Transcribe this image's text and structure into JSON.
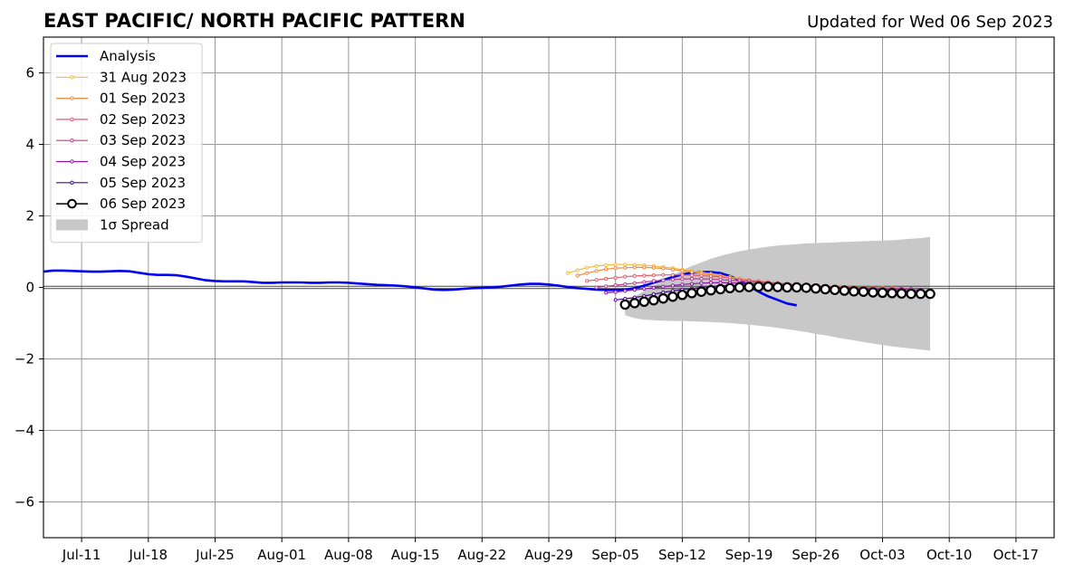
{
  "header": {
    "title": "EAST PACIFIC/ NORTH PACIFIC PATTERN",
    "updated": "Updated for Wed 06 Sep 2023"
  },
  "chart_data": {
    "type": "line",
    "title": "EAST PACIFIC/ NORTH PACIFIC PATTERN",
    "xlabel": "",
    "ylabel": "",
    "xlim": [
      "2023-07-07",
      "2023-10-21"
    ],
    "ylim": [
      -7,
      7
    ],
    "grid": true,
    "legend_position": "top-left",
    "x_ticks": [
      {
        "date": "2023-07-11",
        "label": "Jul-11"
      },
      {
        "date": "2023-07-18",
        "label": "Jul-18"
      },
      {
        "date": "2023-07-25",
        "label": "Jul-25"
      },
      {
        "date": "2023-08-01",
        "label": "Aug-01"
      },
      {
        "date": "2023-08-08",
        "label": "Aug-08"
      },
      {
        "date": "2023-08-15",
        "label": "Aug-15"
      },
      {
        "date": "2023-08-22",
        "label": "Aug-22"
      },
      {
        "date": "2023-08-29",
        "label": "Aug-29"
      },
      {
        "date": "2023-09-05",
        "label": "Sep-05"
      },
      {
        "date": "2023-09-12",
        "label": "Sep-12"
      },
      {
        "date": "2023-09-19",
        "label": "Sep-19"
      },
      {
        "date": "2023-09-26",
        "label": "Sep-26"
      },
      {
        "date": "2023-10-03",
        "label": "Oct-03"
      },
      {
        "date": "2023-10-10",
        "label": "Oct-10"
      },
      {
        "date": "2023-10-17",
        "label": "Oct-17"
      }
    ],
    "y_ticks": [
      {
        "value": -6,
        "label": "−6"
      },
      {
        "value": -4,
        "label": "−4"
      },
      {
        "value": -2,
        "label": "−2"
      },
      {
        "value": 0,
        "label": "0"
      },
      {
        "value": 2,
        "label": "2"
      },
      {
        "value": 4,
        "label": "4"
      },
      {
        "value": 6,
        "label": "6"
      }
    ],
    "analysis": {
      "name": "Analysis",
      "color": "#0000ee",
      "start_date": "2023-07-07",
      "values": [
        0.44,
        0.47,
        0.47,
        0.46,
        0.45,
        0.44,
        0.44,
        0.45,
        0.46,
        0.45,
        0.41,
        0.37,
        0.35,
        0.35,
        0.34,
        0.3,
        0.25,
        0.2,
        0.18,
        0.17,
        0.17,
        0.17,
        0.15,
        0.13,
        0.13,
        0.14,
        0.14,
        0.14,
        0.13,
        0.13,
        0.14,
        0.14,
        0.13,
        0.11,
        0.09,
        0.07,
        0.06,
        0.05,
        0.03,
        0.0,
        -0.03,
        -0.06,
        -0.07,
        -0.06,
        -0.04,
        -0.02,
        -0.01,
        0.0,
        0.02,
        0.05,
        0.08,
        0.1,
        0.1,
        0.08,
        0.05,
        0.01,
        -0.02,
        -0.04,
        -0.06,
        -0.07,
        -0.07,
        -0.06,
        -0.02,
        0.05,
        0.13,
        0.21,
        0.29,
        0.36,
        0.41,
        0.43,
        0.43,
        0.4,
        0.32,
        0.2,
        0.04,
        -0.12,
        -0.25,
        -0.35,
        -0.45,
        -0.5
      ]
    },
    "forecasts": [
      {
        "name": "31 Aug 2023",
        "color": "#f5b940",
        "start_date": "2023-08-31",
        "values": [
          0.4,
          0.48,
          0.55,
          0.6,
          0.62,
          0.64,
          0.64,
          0.63,
          0.62,
          0.6,
          0.57,
          0.54,
          0.5,
          0.46,
          0.42,
          0.38,
          0.33,
          0.29,
          0.25,
          0.21,
          0.18,
          0.15,
          0.12,
          0.1,
          0.08,
          0.06,
          0.05,
          0.04,
          0.03,
          0.02,
          0.01,
          0.0,
          0.0,
          0.0
        ]
      },
      {
        "name": "01 Sep 2023",
        "color": "#ef8a3c",
        "start_date": "2023-09-01",
        "values": [
          0.33,
          0.4,
          0.46,
          0.51,
          0.54,
          0.55,
          0.56,
          0.56,
          0.55,
          0.53,
          0.5,
          0.47,
          0.43,
          0.39,
          0.35,
          0.31,
          0.27,
          0.23,
          0.2,
          0.17,
          0.14,
          0.11,
          0.09,
          0.07,
          0.05,
          0.04,
          0.03,
          0.02,
          0.01,
          0.0,
          0.0,
          -0.01,
          -0.01,
          -0.01
        ]
      },
      {
        "name": "02 Sep 2023",
        "color": "#e05c6c",
        "start_date": "2023-09-02",
        "values": [
          0.18,
          0.21,
          0.24,
          0.27,
          0.3,
          0.32,
          0.33,
          0.34,
          0.35,
          0.35,
          0.35,
          0.34,
          0.33,
          0.31,
          0.29,
          0.26,
          0.23,
          0.2,
          0.17,
          0.15,
          0.12,
          0.1,
          0.08,
          0.06,
          0.05,
          0.03,
          0.02,
          0.01,
          0.0,
          -0.01,
          -0.01,
          -0.02,
          -0.02,
          -0.02
        ]
      },
      {
        "name": "03 Sep 2023",
        "color": "#b8408e",
        "start_date": "2023-09-03",
        "values": [
          0.0,
          0.03,
          0.06,
          0.09,
          0.12,
          0.15,
          0.18,
          0.2,
          0.22,
          0.23,
          0.24,
          0.24,
          0.23,
          0.22,
          0.2,
          0.18,
          0.16,
          0.14,
          0.12,
          0.1,
          0.08,
          0.06,
          0.05,
          0.03,
          0.02,
          0.01,
          0.0,
          -0.01,
          -0.02,
          -0.02,
          -0.03,
          -0.03,
          -0.03,
          -0.04
        ]
      },
      {
        "name": "04 Sep 2023",
        "color": "#8a1aa3",
        "start_date": "2023-09-04",
        "values": [
          -0.15,
          -0.13,
          -0.1,
          -0.07,
          -0.04,
          -0.01,
          0.02,
          0.05,
          0.08,
          0.1,
          0.12,
          0.13,
          0.13,
          0.13,
          0.12,
          0.11,
          0.1,
          0.08,
          0.07,
          0.05,
          0.04,
          0.02,
          0.01,
          0.0,
          -0.01,
          -0.02,
          -0.03,
          -0.04,
          -0.05,
          -0.05,
          -0.06,
          -0.06,
          -0.07,
          -0.07
        ]
      },
      {
        "name": "05 Sep 2023",
        "color": "#4a0a8c",
        "start_date": "2023-09-05",
        "values": [
          -0.35,
          -0.32,
          -0.28,
          -0.24,
          -0.19,
          -0.14,
          -0.1,
          -0.06,
          -0.03,
          0.0,
          0.02,
          0.04,
          0.05,
          0.05,
          0.05,
          0.04,
          0.03,
          0.02,
          0.01,
          0.0,
          -0.02,
          -0.03,
          -0.04,
          -0.05,
          -0.06,
          -0.07,
          -0.08,
          -0.09,
          -0.1,
          -0.1,
          -0.11,
          -0.11,
          -0.12,
          -0.12
        ]
      },
      {
        "name": "06 Sep 2023",
        "color": "#000000",
        "start_date": "2023-09-06",
        "values": [
          -0.48,
          -0.44,
          -0.4,
          -0.36,
          -0.31,
          -0.26,
          -0.21,
          -0.16,
          -0.12,
          -0.08,
          -0.05,
          -0.02,
          0.0,
          0.01,
          0.02,
          0.02,
          0.01,
          0.0,
          0.0,
          -0.01,
          -0.03,
          -0.05,
          -0.07,
          -0.09,
          -0.11,
          -0.12,
          -0.14,
          -0.15,
          -0.16,
          -0.17,
          -0.18,
          -0.18,
          -0.18
        ]
      }
    ],
    "spread": {
      "name": "1σ Spread",
      "color": "#c8c8c8",
      "start_date": "2023-09-06",
      "upper": [
        -0.4,
        -0.25,
        -0.1,
        0.05,
        0.2,
        0.35,
        0.48,
        0.6,
        0.7,
        0.8,
        0.88,
        0.95,
        1.01,
        1.06,
        1.1,
        1.14,
        1.17,
        1.19,
        1.21,
        1.23,
        1.24,
        1.25,
        1.26,
        1.27,
        1.28,
        1.29,
        1.3,
        1.31,
        1.32,
        1.34,
        1.36,
        1.38,
        1.41
      ],
      "lower": [
        -0.78,
        -0.86,
        -0.9,
        -0.92,
        -0.93,
        -0.94,
        -0.94,
        -0.95,
        -0.96,
        -0.97,
        -0.98,
        -1.0,
        -1.02,
        -1.04,
        -1.07,
        -1.1,
        -1.13,
        -1.17,
        -1.21,
        -1.25,
        -1.3,
        -1.34,
        -1.39,
        -1.44,
        -1.48,
        -1.53,
        -1.57,
        -1.61,
        -1.65,
        -1.68,
        -1.71,
        -1.74,
        -1.77
      ]
    },
    "legend": [
      {
        "label": "Analysis",
        "color": "#0000ee",
        "style": "thick-line"
      },
      {
        "label": "31 Aug 2023",
        "color": "#f5b940",
        "style": "line-dots"
      },
      {
        "label": "01 Sep 2023",
        "color": "#ef8a3c",
        "style": "line-dots"
      },
      {
        "label": "02 Sep 2023",
        "color": "#e05c6c",
        "style": "line-dots"
      },
      {
        "label": "03 Sep 2023",
        "color": "#b8408e",
        "style": "line-dots"
      },
      {
        "label": "04 Sep 2023",
        "color": "#8a1aa3",
        "style": "line-dots"
      },
      {
        "label": "05 Sep 2023",
        "color": "#4a0a8c",
        "style": "line-dots"
      },
      {
        "label": "06 Sep 2023",
        "color": "#000000",
        "style": "line-circles"
      },
      {
        "label": "1σ Spread",
        "color": "#c8c8c8",
        "style": "patch"
      }
    ]
  }
}
